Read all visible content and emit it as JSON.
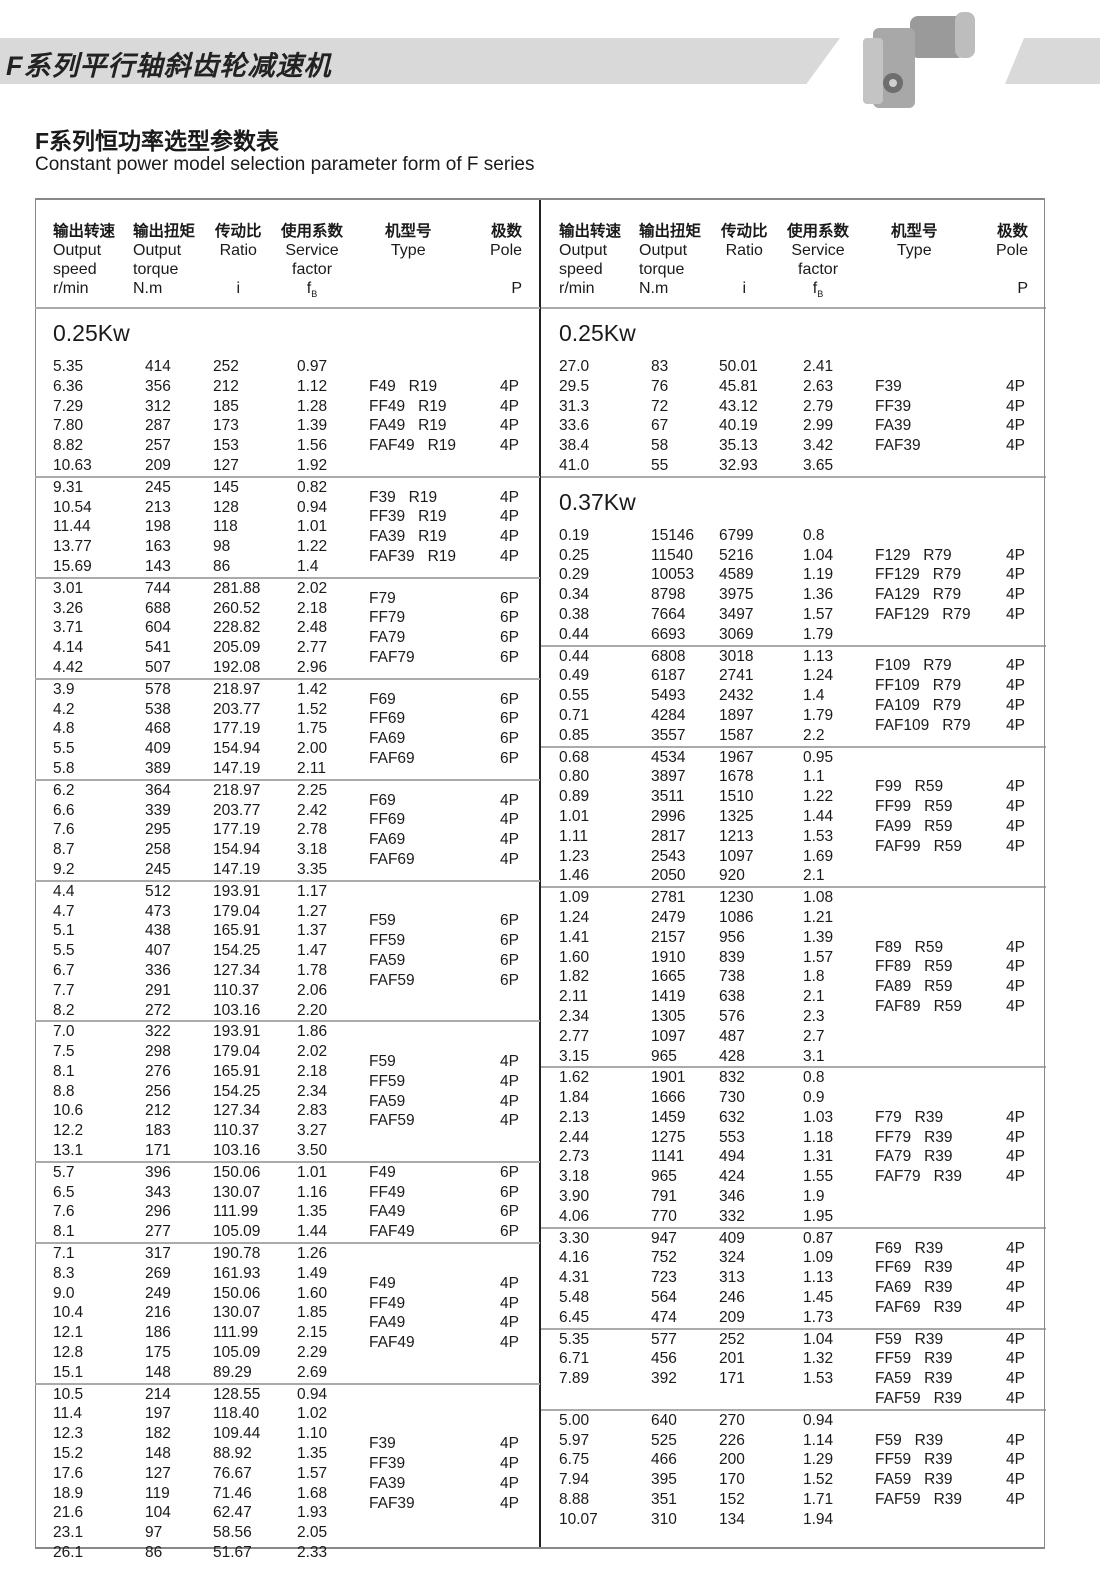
{
  "header": {
    "title": "F系列平行轴斜齿轮减速机",
    "subtitle_cn": "F系列恒功率选型参数表",
    "subtitle_en": "Constant power model selection parameter form of  F series",
    "banner_color": "#d9d9d9",
    "product_image": "gear-reducer-image"
  },
  "columns": [
    {
      "cn": "输出转速",
      "en1": "Output",
      "en2": "speed",
      "unit": "r/min"
    },
    {
      "cn": "输出扭矩",
      "en1": "Output",
      "en2": "torque",
      "unit": "N.m"
    },
    {
      "cn": "传动比",
      "en1": "Ratio",
      "en2": "",
      "unit": "i"
    },
    {
      "cn": "使用系数",
      "en1": "Service",
      "en2": "factor",
      "unit": "fB"
    },
    {
      "cn": "机型号",
      "en1": "Type",
      "en2": "",
      "unit": ""
    },
    {
      "cn": "极数",
      "en1": "Pole",
      "en2": "",
      "unit": "P"
    }
  ],
  "left": [
    {
      "kw": "0.25Kw",
      "groups": [
        {
          "rows": [
            [
              "5.35",
              "414",
              "252",
              "0.97"
            ],
            [
              "6.36",
              "356",
              "212",
              "1.12"
            ],
            [
              "7.29",
              "312",
              "185",
              "1.28"
            ],
            [
              "7.80",
              "287",
              "173",
              "1.39"
            ],
            [
              "8.82",
              "257",
              "153",
              "1.56"
            ],
            [
              "10.63",
              "209",
              "127",
              "1.92"
            ]
          ],
          "types": [
            "F49   R19",
            "FF49   R19",
            "FA49   R19",
            "FAF49   R19"
          ],
          "pole": "4P"
        },
        {
          "rows": [
            [
              "9.31",
              "245",
              "145",
              "0.82"
            ],
            [
              "10.54",
              "213",
              "128",
              "0.94"
            ],
            [
              "11.44",
              "198",
              "118",
              "1.01"
            ],
            [
              "13.77",
              "163",
              "98",
              "1.22"
            ],
            [
              "15.69",
              "143",
              "86",
              "1.4"
            ]
          ],
          "types": [
            "F39   R19",
            "FF39   R19",
            "FA39   R19",
            "FAF39   R19"
          ],
          "pole": "4P"
        },
        {
          "rows": [
            [
              "3.01",
              "744",
              "281.88",
              "2.02"
            ],
            [
              "3.26",
              "688",
              "260.52",
              "2.18"
            ],
            [
              "3.71",
              "604",
              "228.82",
              "2.48"
            ],
            [
              "4.14",
              "541",
              "205.09",
              "2.77"
            ],
            [
              "4.42",
              "507",
              "192.08",
              "2.96"
            ]
          ],
          "types": [
            "F79",
            "FF79",
            "FA79",
            "FAF79"
          ],
          "pole": "6P"
        },
        {
          "rows": [
            [
              "3.9",
              "578",
              "218.97",
              "1.42"
            ],
            [
              "4.2",
              "538",
              "203.77",
              "1.52"
            ],
            [
              "4.8",
              "468",
              "177.19",
              "1.75"
            ],
            [
              "5.5",
              "409",
              "154.94",
              "2.00"
            ],
            [
              "5.8",
              "389",
              "147.19",
              "2.11"
            ]
          ],
          "types": [
            "F69",
            "FF69",
            "FA69",
            "FAF69"
          ],
          "pole": "6P"
        },
        {
          "rows": [
            [
              "6.2",
              "364",
              "218.97",
              "2.25"
            ],
            [
              "6.6",
              "339",
              "203.77",
              "2.42"
            ],
            [
              "7.6",
              "295",
              "177.19",
              "2.78"
            ],
            [
              "8.7",
              "258",
              "154.94",
              "3.18"
            ],
            [
              "9.2",
              "245",
              "147.19",
              "3.35"
            ]
          ],
          "types": [
            "F69",
            "FF69",
            "FA69",
            "FAF69"
          ],
          "pole": "4P"
        },
        {
          "rows": [
            [
              "4.4",
              "512",
              "193.91",
              "1.17"
            ],
            [
              "4.7",
              "473",
              "179.04",
              "1.27"
            ],
            [
              "5.1",
              "438",
              "165.91",
              "1.37"
            ],
            [
              "5.5",
              "407",
              "154.25",
              "1.47"
            ],
            [
              "6.7",
              "336",
              "127.34",
              "1.78"
            ],
            [
              "7.7",
              "291",
              "110.37",
              "2.06"
            ],
            [
              "8.2",
              "272",
              "103.16",
              "2.20"
            ]
          ],
          "types": [
            "F59",
            "FF59",
            "FA59",
            "FAF59"
          ],
          "pole": "6P"
        },
        {
          "rows": [
            [
              "7.0",
              "322",
              "193.91",
              "1.86"
            ],
            [
              "7.5",
              "298",
              "179.04",
              "2.02"
            ],
            [
              "8.1",
              "276",
              "165.91",
              "2.18"
            ],
            [
              "8.8",
              "256",
              "154.25",
              "2.34"
            ],
            [
              "10.6",
              "212",
              "127.34",
              "2.83"
            ],
            [
              "12.2",
              "183",
              "110.37",
              "3.27"
            ],
            [
              "13.1",
              "171",
              "103.16",
              "3.50"
            ]
          ],
          "types": [
            "F59",
            "FF59",
            "FA59",
            "FAF59"
          ],
          "pole": "4P"
        },
        {
          "rows": [
            [
              "5.7",
              "396",
              "150.06",
              "1.01"
            ],
            [
              "6.5",
              "343",
              "130.07",
              "1.16"
            ],
            [
              "7.6",
              "296",
              "111.99",
              "1.35"
            ],
            [
              "8.1",
              "277",
              "105.09",
              "1.44"
            ]
          ],
          "types": [
            "F49",
            "FF49",
            "FA49",
            "FAF49"
          ],
          "pole": "6P"
        },
        {
          "rows": [
            [
              "7.1",
              "317",
              "190.78",
              "1.26"
            ],
            [
              "8.3",
              "269",
              "161.93",
              "1.49"
            ],
            [
              "9.0",
              "249",
              "150.06",
              "1.60"
            ],
            [
              "10.4",
              "216",
              "130.07",
              "1.85"
            ],
            [
              "12.1",
              "186",
              "111.99",
              "2.15"
            ],
            [
              "12.8",
              "175",
              "105.09",
              "2.29"
            ],
            [
              "15.1",
              "148",
              "89.29",
              "2.69"
            ]
          ],
          "types": [
            "F49",
            "FF49",
            "FA49",
            "FAF49"
          ],
          "pole": "4P"
        },
        {
          "rows": [
            [
              "10.5",
              "214",
              "128.55",
              "0.94"
            ],
            [
              "11.4",
              "197",
              "118.40",
              "1.02"
            ],
            [
              "12.3",
              "182",
              "109.44",
              "1.10"
            ],
            [
              "15.2",
              "148",
              "88.92",
              "1.35"
            ],
            [
              "17.6",
              "127",
              "76.67",
              "1.57"
            ],
            [
              "18.9",
              "119",
              "71.46",
              "1.68"
            ],
            [
              "21.6",
              "104",
              "62.47",
              "1.93"
            ],
            [
              "23.1",
              "97",
              "58.56",
              "2.05"
            ],
            [
              "26.1",
              "86",
              "51.67",
              "2.33"
            ]
          ],
          "types": [
            "F39",
            "FF39",
            "FA39",
            "FAF39"
          ],
          "pole": "4P"
        }
      ]
    }
  ],
  "right": [
    {
      "kw": "0.25Kw",
      "groups": [
        {
          "rows": [
            [
              "27.0",
              "83",
              "50.01",
              "2.41"
            ],
            [
              "29.5",
              "76",
              "45.81",
              "2.63"
            ],
            [
              "31.3",
              "72",
              "43.12",
              "2.79"
            ],
            [
              "33.6",
              "67",
              "40.19",
              "2.99"
            ],
            [
              "38.4",
              "58",
              "35.13",
              "3.42"
            ],
            [
              "41.0",
              "55",
              "32.93",
              "3.65"
            ]
          ],
          "types": [
            "F39",
            "FF39",
            "FA39",
            "FAF39"
          ],
          "pole": "4P"
        }
      ]
    },
    {
      "kw": "0.37Kw",
      "groups": [
        {
          "rows": [
            [
              "0.19",
              "15146",
              "6799",
              "0.8"
            ],
            [
              "0.25",
              "11540",
              "5216",
              "1.04"
            ],
            [
              "0.29",
              "10053",
              "4589",
              "1.19"
            ],
            [
              "0.34",
              "8798",
              "3975",
              "1.36"
            ],
            [
              "0.38",
              "7664",
              "3497",
              "1.57"
            ],
            [
              "0.44",
              "6693",
              "3069",
              "1.79"
            ]
          ],
          "types": [
            "F129   R79",
            "FF129   R79",
            "FA129   R79",
            "FAF129   R79"
          ],
          "pole": "4P"
        },
        {
          "rows": [
            [
              "0.44",
              "6808",
              "3018",
              "1.13"
            ],
            [
              "0.49",
              "6187",
              "2741",
              "1.24"
            ],
            [
              "0.55",
              "5493",
              "2432",
              "1.4"
            ],
            [
              "0.71",
              "4284",
              "1897",
              "1.79"
            ],
            [
              "0.85",
              "3557",
              "1587",
              "2.2"
            ]
          ],
          "types": [
            "F109   R79",
            "FF109   R79",
            "FA109   R79",
            "FAF109   R79"
          ],
          "pole": "4P"
        },
        {
          "rows": [
            [
              "0.68",
              "4534",
              "1967",
              "0.95"
            ],
            [
              "0.80",
              "3897",
              "1678",
              "1.1"
            ],
            [
              "0.89",
              "3511",
              "1510",
              "1.22"
            ],
            [
              "1.01",
              "2996",
              "1325",
              "1.44"
            ],
            [
              "1.11",
              "2817",
              "1213",
              "1.53"
            ],
            [
              "1.23",
              "2543",
              "1097",
              "1.69"
            ],
            [
              "1.46",
              "2050",
              "920",
              "2.1"
            ]
          ],
          "types": [
            "F99   R59",
            "FF99   R59",
            "FA99   R59",
            "FAF99   R59"
          ],
          "pole": "4P"
        },
        {
          "rows": [
            [
              "1.09",
              "2781",
              "1230",
              "1.08"
            ],
            [
              "1.24",
              "2479",
              "1086",
              "1.21"
            ],
            [
              "1.41",
              "2157",
              "956",
              "1.39"
            ],
            [
              "1.60",
              "1910",
              "839",
              "1.57"
            ],
            [
              "1.82",
              "1665",
              "738",
              "1.8"
            ],
            [
              "2.11",
              "1419",
              "638",
              "2.1"
            ],
            [
              "2.34",
              "1305",
              "576",
              "2.3"
            ],
            [
              "2.77",
              "1097",
              "487",
              "2.7"
            ],
            [
              "3.15",
              "965",
              "428",
              "3.1"
            ]
          ],
          "types": [
            "F89   R59",
            "FF89   R59",
            "FA89   R59",
            "FAF89   R59"
          ],
          "pole": "4P"
        },
        {
          "rows": [
            [
              "1.62",
              "1901",
              "832",
              "0.8"
            ],
            [
              "1.84",
              "1666",
              "730",
              "0.9"
            ],
            [
              "2.13",
              "1459",
              "632",
              "1.03"
            ],
            [
              "2.44",
              "1275",
              "553",
              "1.18"
            ],
            [
              "2.73",
              "1141",
              "494",
              "1.31"
            ],
            [
              "3.18",
              "965",
              "424",
              "1.55"
            ],
            [
              "3.90",
              "791",
              "346",
              "1.9"
            ],
            [
              "4.06",
              "770",
              "332",
              "1.95"
            ]
          ],
          "types": [
            "F79   R39",
            "FF79   R39",
            "FA79   R39",
            "FAF79   R39"
          ],
          "pole": "4P"
        },
        {
          "rows": [
            [
              "3.30",
              "947",
              "409",
              "0.87"
            ],
            [
              "4.16",
              "752",
              "324",
              "1.09"
            ],
            [
              "4.31",
              "723",
              "313",
              "1.13"
            ],
            [
              "5.48",
              "564",
              "246",
              "1.45"
            ],
            [
              "6.45",
              "474",
              "209",
              "1.73"
            ]
          ],
          "types": [
            "F69   R39",
            "FF69   R39",
            "FA69   R39",
            "FAF69   R39"
          ],
          "pole": "4P"
        },
        {
          "rows": [
            [
              "5.35",
              "577",
              "252",
              "1.04"
            ],
            [
              "6.71",
              "456",
              "201",
              "1.32"
            ],
            [
              "7.89",
              "392",
              "171",
              "1.53"
            ],
            [
              "",
              "",
              "",
              ""
            ]
          ],
          "types": [
            "F59   R39",
            "FF59   R39",
            "FA59   R39",
            "FAF59   R39"
          ],
          "pole": "4P"
        },
        {
          "rows": [
            [
              "5.00",
              "640",
              "270",
              "0.94"
            ],
            [
              "5.97",
              "525",
              "226",
              "1.14"
            ],
            [
              "6.75",
              "466",
              "200",
              "1.29"
            ],
            [
              "7.94",
              "395",
              "170",
              "1.52"
            ],
            [
              "8.88",
              "351",
              "152",
              "1.71"
            ],
            [
              "10.07",
              "310",
              "134",
              "1.94"
            ]
          ],
          "types": [
            "F59   R39",
            "FF59   R39",
            "FA59   R39",
            "FAF59   R39"
          ],
          "pole": "4P"
        }
      ]
    }
  ]
}
